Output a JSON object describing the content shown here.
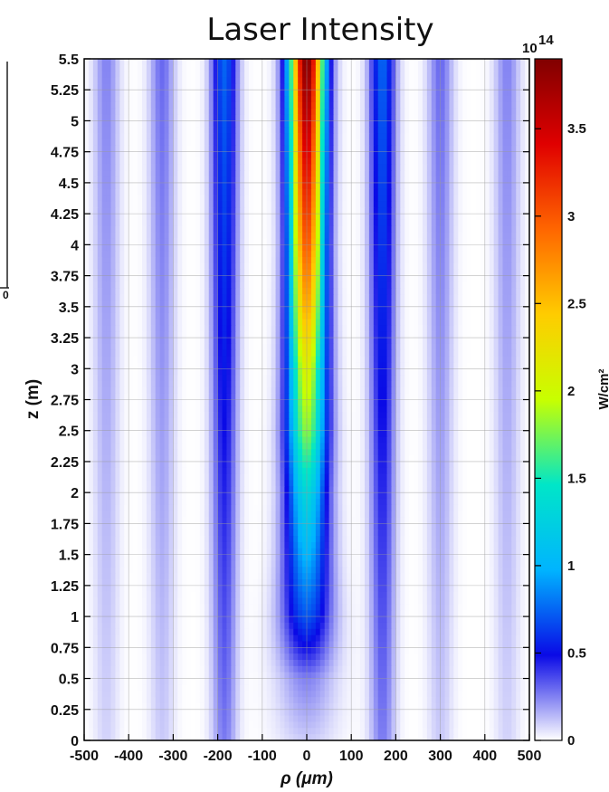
{
  "chart_data": {
    "type": "heatmap",
    "title": "Laser Intensity",
    "xlabel": "ρ (μm)",
    "ylabel": "z (m)",
    "xlim": [
      -500,
      500
    ],
    "ylim": [
      0,
      5.5
    ],
    "x_ticks": [
      "-500",
      "-400",
      "-300",
      "-200",
      "-100",
      "0",
      "100",
      "200",
      "300",
      "400",
      "500"
    ],
    "x_tick_values": [
      -500,
      -400,
      -300,
      -200,
      -100,
      0,
      100,
      200,
      300,
      400,
      500
    ],
    "y_ticks": [
      "0",
      "0.25",
      "0.5",
      "0.75",
      "1",
      "1.25",
      "1.5",
      "1.75",
      "2",
      "2.25",
      "2.5",
      "2.75",
      "3",
      "3.25",
      "3.5",
      "3.75",
      "4",
      "4.25",
      "4.5",
      "4.75",
      "5",
      "5.25",
      "5.5"
    ],
    "y_tick_values": [
      0,
      0.25,
      0.5,
      0.75,
      1,
      1.25,
      1.5,
      1.75,
      2,
      2.25,
      2.5,
      2.75,
      3,
      3.25,
      3.5,
      3.75,
      4,
      4.25,
      4.5,
      4.75,
      5,
      5.25,
      5.5
    ],
    "grid": true,
    "colorbar": {
      "exponent_base": "10",
      "exponent_power": "14",
      "unit_label": "W/cm²",
      "range": [
        0,
        3.9
      ],
      "ticks": [
        "0",
        "0.5",
        "1",
        "1.5",
        "2",
        "2.5",
        "3",
        "3.5"
      ],
      "tick_values": [
        0,
        0.5,
        1,
        1.5,
        2,
        2.5,
        3,
        3.5
      ],
      "colormap": [
        "#ffffff",
        "#0a0ae6",
        "#00b4ff",
        "#00e6c8",
        "#c8ff00",
        "#ffcc00",
        "#ff6600",
        "#e00000",
        "#800000"
      ]
    },
    "intensity_profile": {
      "description_units": "intensity in 1e14 W/cm^2 along beam axis vs z (m)",
      "axis_z": [
        0,
        0.5,
        1,
        1.5,
        2,
        2.5,
        3,
        3.5,
        4,
        4.5,
        5,
        5.5
      ],
      "axis_peak": [
        0.1,
        0.25,
        0.7,
        1.0,
        1.3,
        1.8,
        2.1,
        2.6,
        3.0,
        3.3,
        3.6,
        3.9
      ],
      "core_halfwidth_um_at_z": [
        90,
        85,
        75,
        65,
        60,
        58,
        55,
        52,
        50,
        50,
        50,
        50
      ],
      "side_lobes_rho_um": [
        -450,
        -325,
        -185,
        170,
        300,
        450
      ],
      "side_lobe_peak": [
        0.25,
        0.3,
        0.75,
        0.75,
        0.3,
        0.25
      ]
    }
  },
  "partial_left_panel": {
    "edge_tick": "0"
  }
}
